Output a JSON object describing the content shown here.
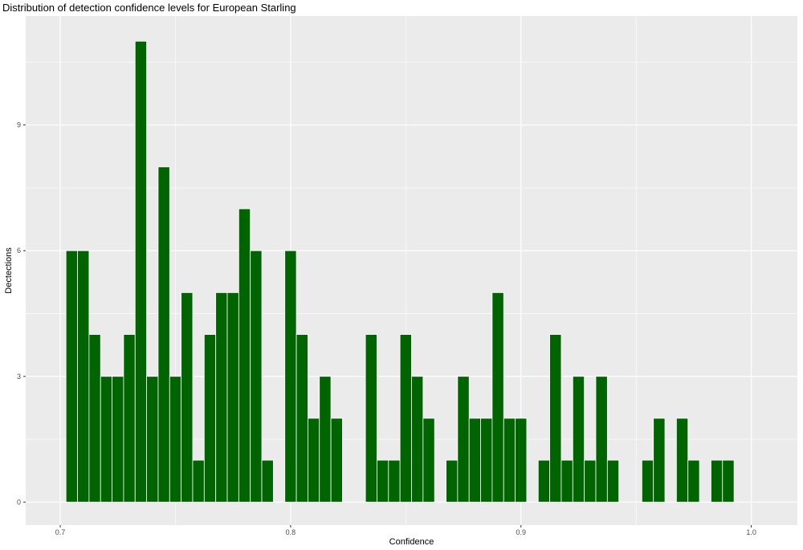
{
  "chart_data": {
    "type": "bar",
    "title": "Distribution of detection confidence levels for European Starling",
    "xlabel": "Confidence",
    "ylabel": "Dectections",
    "xlim": [
      0.685,
      1.02
    ],
    "ylim": [
      -0.55,
      11.6
    ],
    "x_ticks": [
      0.7,
      0.8,
      0.9,
      1.0
    ],
    "x_tick_labels": [
      "0.7",
      "0.8",
      "0.9",
      "1.0"
    ],
    "y_ticks": [
      0,
      3,
      6,
      9
    ],
    "y_tick_labels": [
      "0",
      "3",
      "6",
      "9"
    ],
    "bin_width": 0.005,
    "grid": true,
    "colors": {
      "bar_fill": "#006400",
      "bar_outline": "#ffffff",
      "panel_background": "#ebebeb",
      "gridline": "#ffffff"
    },
    "x": [
      0.705,
      0.71,
      0.715,
      0.72,
      0.725,
      0.73,
      0.735,
      0.74,
      0.745,
      0.75,
      0.755,
      0.76,
      0.765,
      0.77,
      0.775,
      0.78,
      0.785,
      0.79,
      0.795,
      0.8,
      0.805,
      0.81,
      0.815,
      0.82,
      0.825,
      0.83,
      0.835,
      0.84,
      0.845,
      0.85,
      0.855,
      0.86,
      0.865,
      0.87,
      0.875,
      0.88,
      0.885,
      0.89,
      0.895,
      0.9,
      0.905,
      0.91,
      0.915,
      0.92,
      0.925,
      0.93,
      0.935,
      0.94,
      0.945,
      0.95,
      0.955,
      0.96,
      0.965,
      0.97,
      0.975,
      0.98,
      0.985,
      0.99
    ],
    "values": [
      6,
      6,
      4,
      3,
      3,
      4,
      11,
      3,
      8,
      3,
      5,
      1,
      4,
      5,
      5,
      7,
      6,
      1,
      0,
      6,
      4,
      2,
      3,
      2,
      0,
      0,
      4,
      1,
      1,
      4,
      3,
      2,
      0,
      1,
      3,
      2,
      2,
      5,
      2,
      2,
      0,
      1,
      4,
      1,
      3,
      1,
      3,
      1,
      0,
      0,
      1,
      2,
      0,
      2,
      1,
      0,
      1,
      1
    ]
  }
}
